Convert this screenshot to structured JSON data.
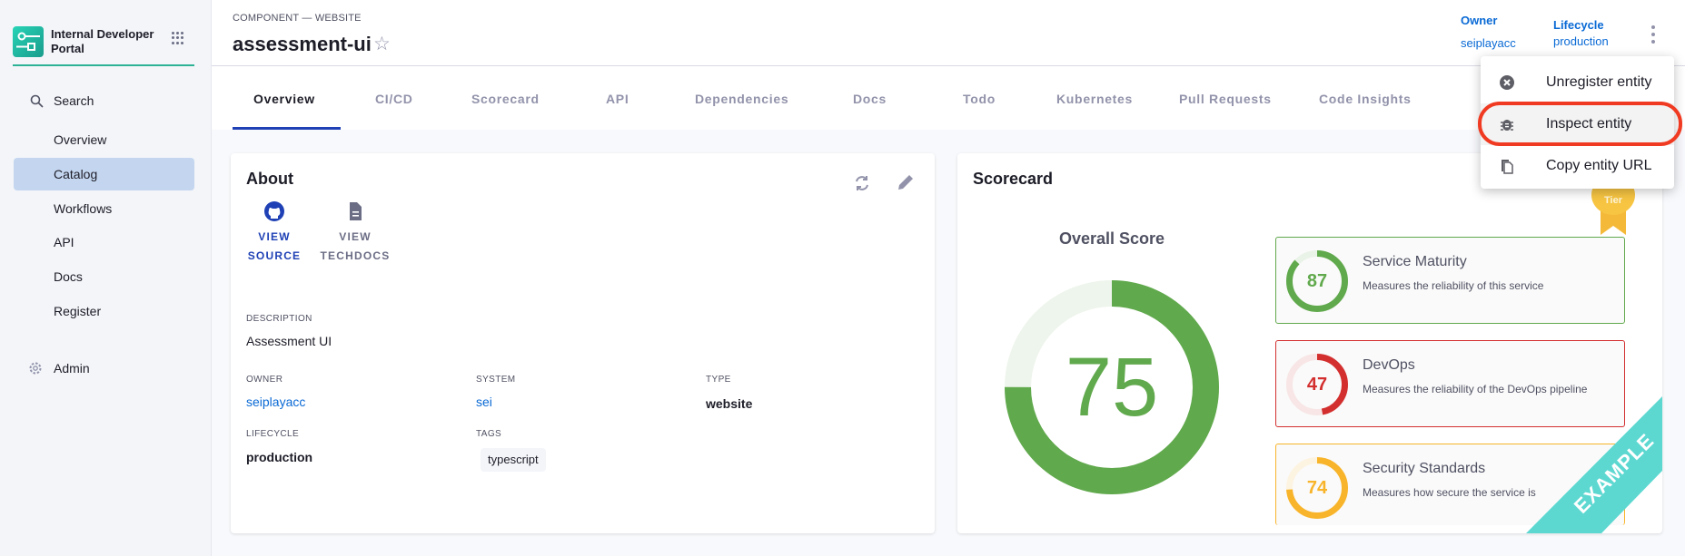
{
  "sidebar": {
    "brand": "Internal Developer Portal",
    "search": "Search",
    "items": [
      {
        "label": "Overview"
      },
      {
        "label": "Catalog",
        "active": true
      },
      {
        "label": "Workflows"
      },
      {
        "label": "API"
      },
      {
        "label": "Docs"
      },
      {
        "label": "Register"
      }
    ],
    "admin": "Admin"
  },
  "header": {
    "kind": "COMPONENT — WEBSITE",
    "title": "assessment-ui",
    "owner_label": "Owner",
    "owner_value": "seiplayacc",
    "lifecycle_label": "Lifecycle",
    "lifecycle_value": "production"
  },
  "tabs": [
    "Overview",
    "CI/CD",
    "Scorecard",
    "API",
    "Dependencies",
    "Docs",
    "Todo",
    "Kubernetes",
    "Pull Requests",
    "Code Insights"
  ],
  "about": {
    "title": "About",
    "view_source": [
      "VIEW",
      "SOURCE"
    ],
    "view_techdocs": [
      "VIEW",
      "TECHDOCS"
    ],
    "description_label": "DESCRIPTION",
    "description": "Assessment UI",
    "owner_label": "OWNER",
    "owner": "seiplayacc",
    "system_label": "SYSTEM",
    "system": "sei",
    "type_label": "TYPE",
    "type": "website",
    "lifecycle_label": "LIFECYCLE",
    "lifecycle": "production",
    "tags_label": "TAGS",
    "tags": [
      "typescript"
    ]
  },
  "scorecard": {
    "title": "Scorecard",
    "overall_label": "Overall Score",
    "overall": 75,
    "overall_color": "#61a94d",
    "badge_text": "Tier",
    "ribbon": "EXAMPLE",
    "checks": [
      {
        "score": 87,
        "title": "Service Maturity",
        "desc": "Measures the reliability of this service",
        "color": "#61a94d",
        "track": "#eaf3e7"
      },
      {
        "score": 47,
        "title": "DevOps",
        "desc": "Measures the reliability of the DevOps pipeline",
        "color": "#d32f2f",
        "track": "#f8e6e6"
      },
      {
        "score": 74,
        "title": "Security Standards",
        "desc": "Measures how secure the service is",
        "color": "#f8b42a",
        "track": "#fdf3e1"
      }
    ]
  },
  "menu": {
    "items": [
      {
        "label": "Unregister entity",
        "icon": "cancel-icon"
      },
      {
        "label": "Inspect entity",
        "icon": "bug-icon",
        "highlighted": true
      },
      {
        "label": "Copy entity URL",
        "icon": "copy-icon"
      }
    ]
  }
}
